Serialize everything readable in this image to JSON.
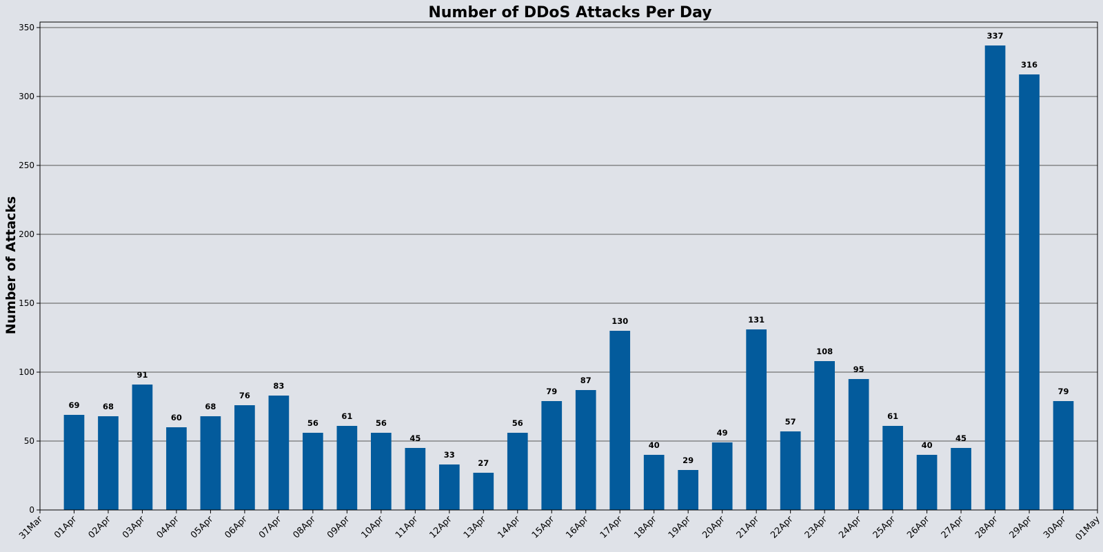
{
  "chart_data": {
    "type": "bar",
    "title": "Number of DDoS Attacks Per Day",
    "xlabel": "",
    "ylabel": "Number of Attacks",
    "ylim": [
      0,
      354
    ],
    "yticks": [
      0,
      50,
      100,
      150,
      200,
      250,
      300,
      350
    ],
    "grid": "horizontal",
    "bar_color": "#035b9c",
    "xlim_labels": {
      "start": "31Mar",
      "end": "01May"
    },
    "categories": [
      "01Apr",
      "02Apr",
      "03Apr",
      "04Apr",
      "05Apr",
      "06Apr",
      "07Apr",
      "08Apr",
      "09Apr",
      "10Apr",
      "11Apr",
      "12Apr",
      "13Apr",
      "14Apr",
      "15Apr",
      "16Apr",
      "17Apr",
      "18Apr",
      "19Apr",
      "20Apr",
      "21Apr",
      "22Apr",
      "23Apr",
      "24Apr",
      "25Apr",
      "26Apr",
      "27Apr",
      "28Apr",
      "29Apr",
      "30Apr"
    ],
    "values": [
      69,
      68,
      91,
      60,
      68,
      76,
      83,
      56,
      61,
      56,
      45,
      33,
      27,
      56,
      79,
      87,
      130,
      40,
      29,
      49,
      131,
      57,
      108,
      95,
      61,
      40,
      45,
      337,
      316,
      79
    ]
  }
}
